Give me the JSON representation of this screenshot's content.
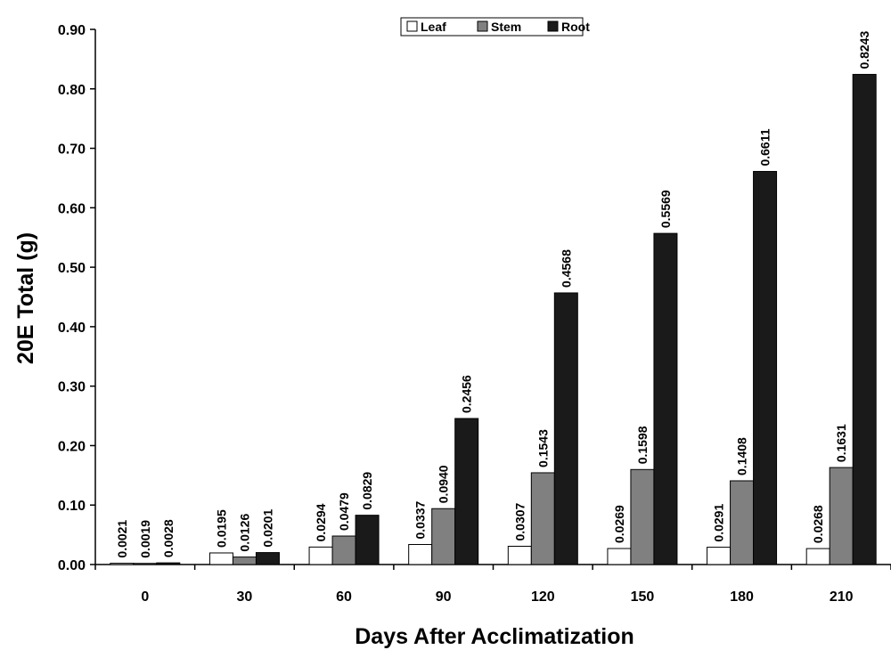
{
  "chart_data": {
    "type": "bar",
    "xlabel": "Days After Acclimatization",
    "ylabel": "20E Total (g)",
    "ylim": [
      0,
      0.9
    ],
    "yticks": [
      "0.00",
      "0.10",
      "0.20",
      "0.30",
      "0.40",
      "0.50",
      "0.60",
      "0.70",
      "0.80",
      "0.90"
    ],
    "categories": [
      "0",
      "30",
      "60",
      "90",
      "120",
      "150",
      "180",
      "210"
    ],
    "legend_position": "top-center",
    "grid": false,
    "series": [
      {
        "name": "Leaf",
        "color": "#ffffff",
        "values": [
          0.0021,
          0.0195,
          0.0294,
          0.0337,
          0.0307,
          0.0269,
          0.0291,
          0.0268
        ],
        "labels": [
          "0.0021",
          "0.0195",
          "0.0294",
          "0.0337",
          "0.0307",
          "0.0269",
          "0.0291",
          "0.0268"
        ]
      },
      {
        "name": "Stem",
        "color": "#808080",
        "values": [
          0.0019,
          0.0126,
          0.0479,
          0.094,
          0.1543,
          0.1598,
          0.1408,
          0.1631
        ],
        "labels": [
          "0.0019",
          "0.0126",
          "0.0479",
          "0.0940",
          "0.1543",
          "0.1598",
          "0.1408",
          "0.1631"
        ]
      },
      {
        "name": "Root",
        "color": "#1a1a1a",
        "values": [
          0.0028,
          0.0201,
          0.0829,
          0.2456,
          0.4568,
          0.5569,
          0.6611,
          0.8243
        ],
        "labels": [
          "0.0028",
          "0.0201",
          "0.0829",
          "0.2456",
          "0.4568",
          "0.5569",
          "0.6611",
          "0.8243"
        ]
      }
    ]
  }
}
